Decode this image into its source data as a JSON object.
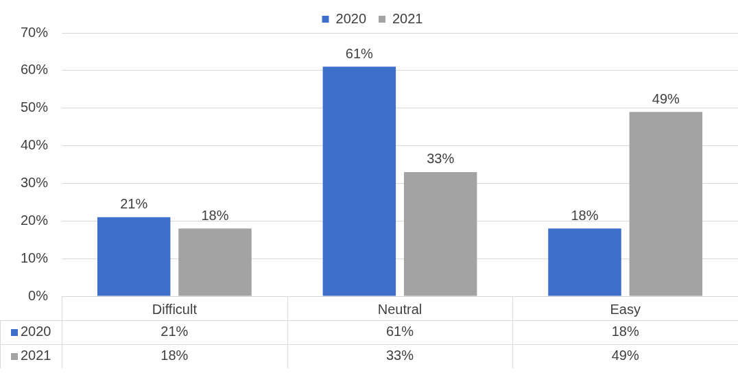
{
  "chart_data": {
    "type": "bar",
    "categories": [
      "Difficult",
      "Neutral",
      "Easy"
    ],
    "series": [
      {
        "name": "2020",
        "color": "#3d6fcb",
        "values": [
          21,
          61,
          18
        ],
        "value_labels": [
          "21%",
          "61%",
          "18%"
        ]
      },
      {
        "name": "2021",
        "color": "#a3a3a3",
        "values": [
          18,
          33,
          49
        ],
        "value_labels": [
          "18%",
          "33%",
          "49%"
        ]
      }
    ],
    "ylim": [
      0,
      70
    ],
    "yticks": [
      {
        "value": 0,
        "label": "0%"
      },
      {
        "value": 10,
        "label": "10%"
      },
      {
        "value": 20,
        "label": "20%"
      },
      {
        "value": 30,
        "label": "30%"
      },
      {
        "value": 40,
        "label": "40%"
      },
      {
        "value": 50,
        "label": "50%"
      },
      {
        "value": 60,
        "label": "60%"
      },
      {
        "value": 70,
        "label": "70%"
      }
    ],
    "grid": "y",
    "legend": "top"
  }
}
